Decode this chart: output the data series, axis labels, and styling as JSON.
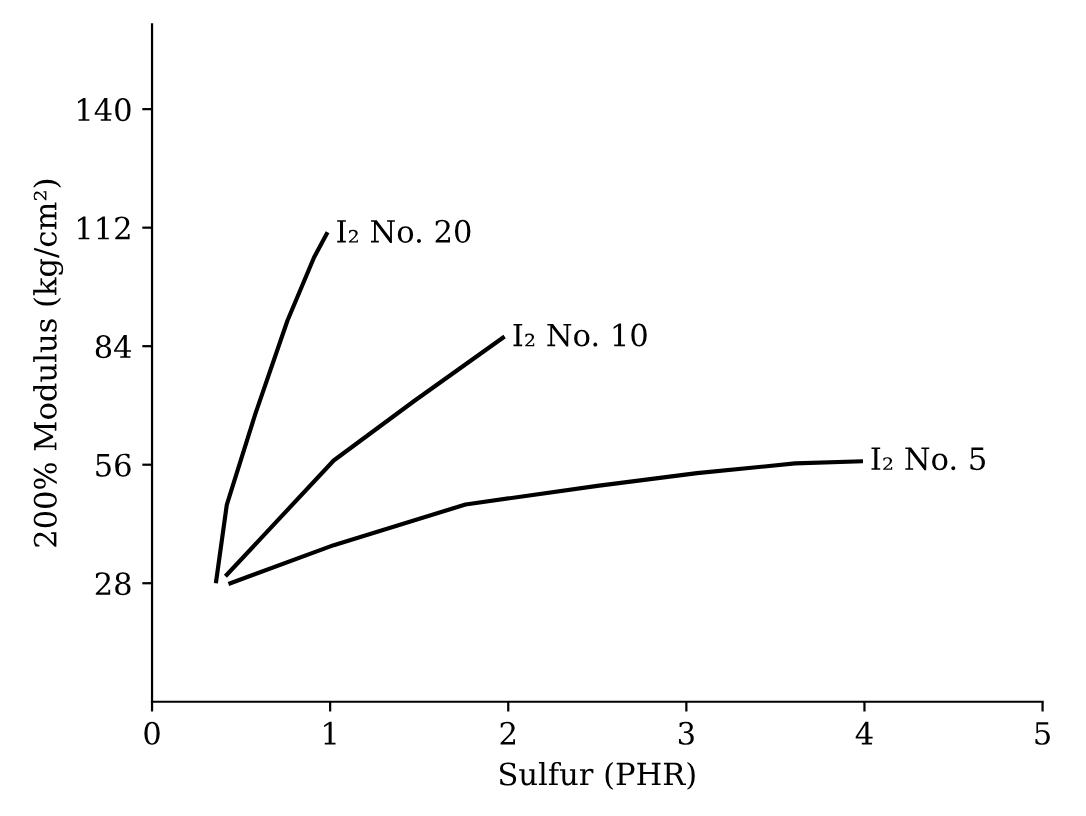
{
  "chart_data": {
    "type": "line",
    "xlabel": "Sulfur (PHR)",
    "ylabel": "200% Modulus (kg/cm²)",
    "xlim": [
      0,
      5
    ],
    "ylim": [
      0,
      160
    ],
    "xticks": [
      0,
      1,
      2,
      3,
      4,
      5
    ],
    "yticks": [
      28,
      56,
      84,
      112,
      140
    ],
    "grid": false,
    "legend": false,
    "marker": "none",
    "line_style": "solid",
    "series": [
      {
        "name": "I₂ No. 20",
        "color": "#000000",
        "x": [
          0.36,
          0.42,
          0.58,
          0.76,
          0.91,
          0.98
        ],
        "values": [
          28.5,
          46.6,
          68,
          90,
          105,
          110.5
        ]
      },
      {
        "name": "I₂ No. 10",
        "color": "#000000",
        "x": [
          0.42,
          1.02,
          1.47,
          1.97
        ],
        "values": [
          30,
          57,
          71,
          86
        ]
      },
      {
        "name": "I₂ No. 5",
        "color": "#000000",
        "x": [
          0.44,
          1.02,
          1.76,
          2.5,
          3.06,
          3.61,
          3.98
        ],
        "values": [
          28,
          37,
          46.6,
          51,
          54,
          56.3,
          56.8
        ]
      }
    ]
  }
}
